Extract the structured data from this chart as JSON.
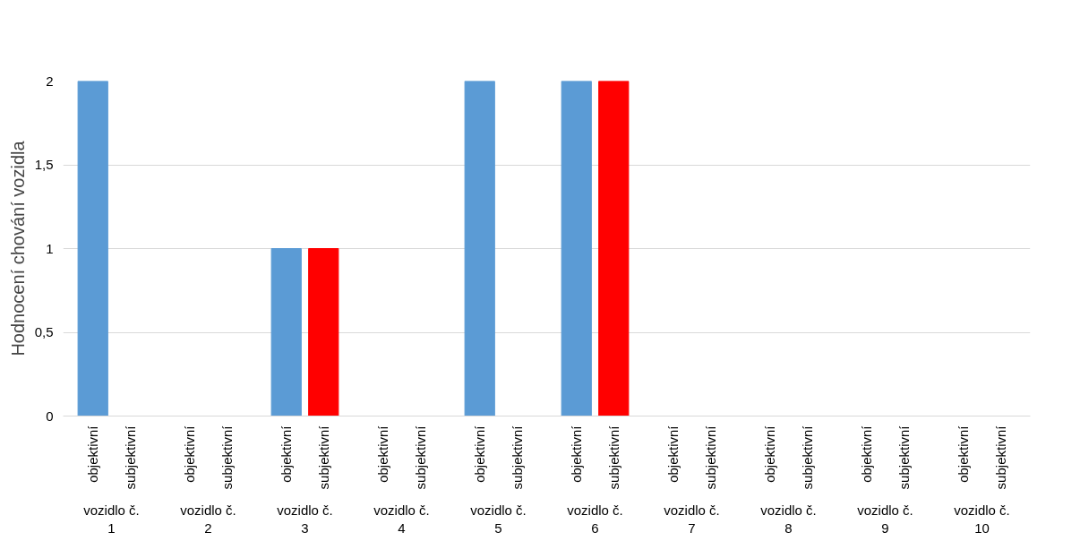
{
  "chart_data": {
    "type": "bar",
    "ylabel": "Hodnocení chování vozidla",
    "categories": [
      "vozidlo č. 1",
      "vozidlo č. 2",
      "vozidlo č. 3",
      "vozidlo č. 4",
      "vozidlo č. 5",
      "vozidlo č. 6",
      "vozidlo č. 7",
      "vozidlo č. 8",
      "vozidlo č. 9",
      "vozidlo č. 10"
    ],
    "series": [
      {
        "name": "objektivní",
        "color": "#5b9bd5",
        "values": [
          2,
          0,
          1,
          0,
          2,
          2,
          0,
          0,
          0,
          0
        ]
      },
      {
        "name": "subjektivní",
        "color": "#ff0000",
        "values": [
          0,
          0,
          1,
          0,
          0,
          2,
          0,
          0,
          0,
          0
        ]
      }
    ],
    "ylim": [
      0,
      2
    ],
    "yticks": [
      {
        "value": 0,
        "label": "0"
      },
      {
        "value": 0.5,
        "label": "0,5"
      },
      {
        "value": 1,
        "label": "1"
      },
      {
        "value": 1.5,
        "label": "1,5"
      },
      {
        "value": 2,
        "label": "2"
      }
    ],
    "grid": "y",
    "legend": false
  }
}
